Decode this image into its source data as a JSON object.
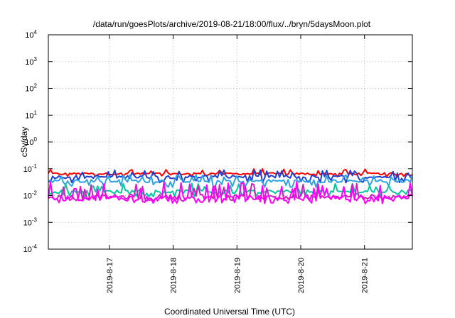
{
  "chart_data": {
    "type": "line",
    "title": "/data/run/goesPlots/archive/2019-08-21/18:00/flux/../bryn/5daysMoon.plot",
    "xlabel": "Coordinated Universal Time (UTC)",
    "ylabel": "cSv/day",
    "yscale": "log",
    "ylim": [
      0.0001,
      10000
    ],
    "y_ticks": [
      {
        "value": 0.0001,
        "base": "10",
        "exp": "-4"
      },
      {
        "value": 0.001,
        "base": "10",
        "exp": "-3"
      },
      {
        "value": 0.01,
        "base": "10",
        "exp": "-2"
      },
      {
        "value": 0.1,
        "base": "10",
        "exp": "-1"
      },
      {
        "value": 1,
        "base": "10",
        "exp": "0"
      },
      {
        "value": 10,
        "base": "10",
        "exp": "1"
      },
      {
        "value": 100,
        "base": "10",
        "exp": "2"
      },
      {
        "value": 1000,
        "base": "10",
        "exp": "3"
      },
      {
        "value": 10000,
        "base": "10",
        "exp": "4"
      }
    ],
    "xlim_days": [
      2019.0816,
      2019.08218
    ],
    "x_ticks": [
      "2019-8-17",
      "2019-8-18",
      "2019-8-19",
      "2019-8-20",
      "2019-8-21"
    ],
    "x_range": {
      "start": "2019-08-16T01:00",
      "end": "2019-08-21T18:00"
    },
    "grid": true,
    "series": [
      {
        "color": "#ff0000",
        "base": 0.065,
        "low": 0.05,
        "high": 0.1
      },
      {
        "color": "#1f3fd1",
        "base": 0.05,
        "low": 0.03,
        "high": 0.09
      },
      {
        "color": "#2fa3e0",
        "base": 0.035,
        "low": 0.02,
        "high": 0.06
      },
      {
        "color": "#00c8a0",
        "base": 0.014,
        "low": 0.009,
        "high": 0.03
      },
      {
        "color": "#d020c0",
        "base": 0.009,
        "low": 0.006,
        "high": 0.03
      },
      {
        "color": "#ff00ff",
        "base": 0.008,
        "low": 0.005,
        "high": 0.035
      }
    ]
  }
}
